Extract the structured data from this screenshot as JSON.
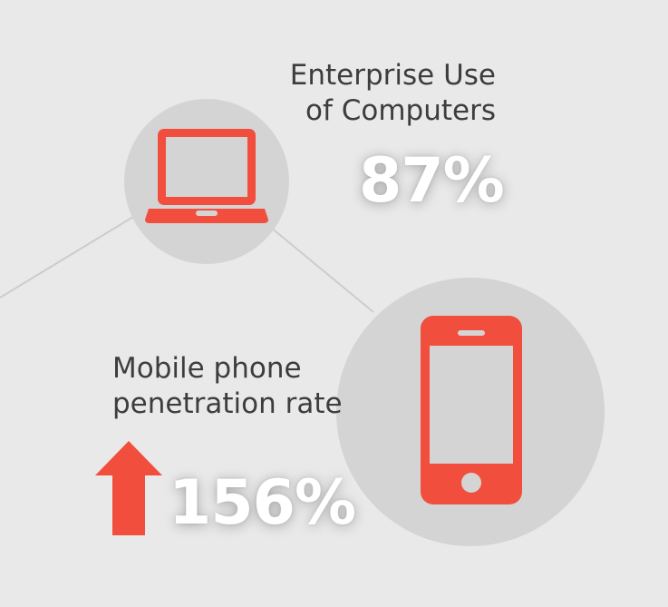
{
  "colors": {
    "background": "#e9e9e9",
    "circle": "#d4d4d4",
    "accent": "#f24e3e",
    "line": "#cccccc",
    "label_text": "#3d3d3d",
    "stat_text": "#ffffff"
  },
  "computers": {
    "label_line1": "Enterprise Use",
    "label_line2": "of Computers",
    "value": "87%",
    "icon": "laptop-icon"
  },
  "mobile": {
    "label_line1": "Mobile phone",
    "label_line2": "penetration rate",
    "value": "156%",
    "icon": "smartphone-icon",
    "trend_icon": "up-arrow-icon"
  }
}
